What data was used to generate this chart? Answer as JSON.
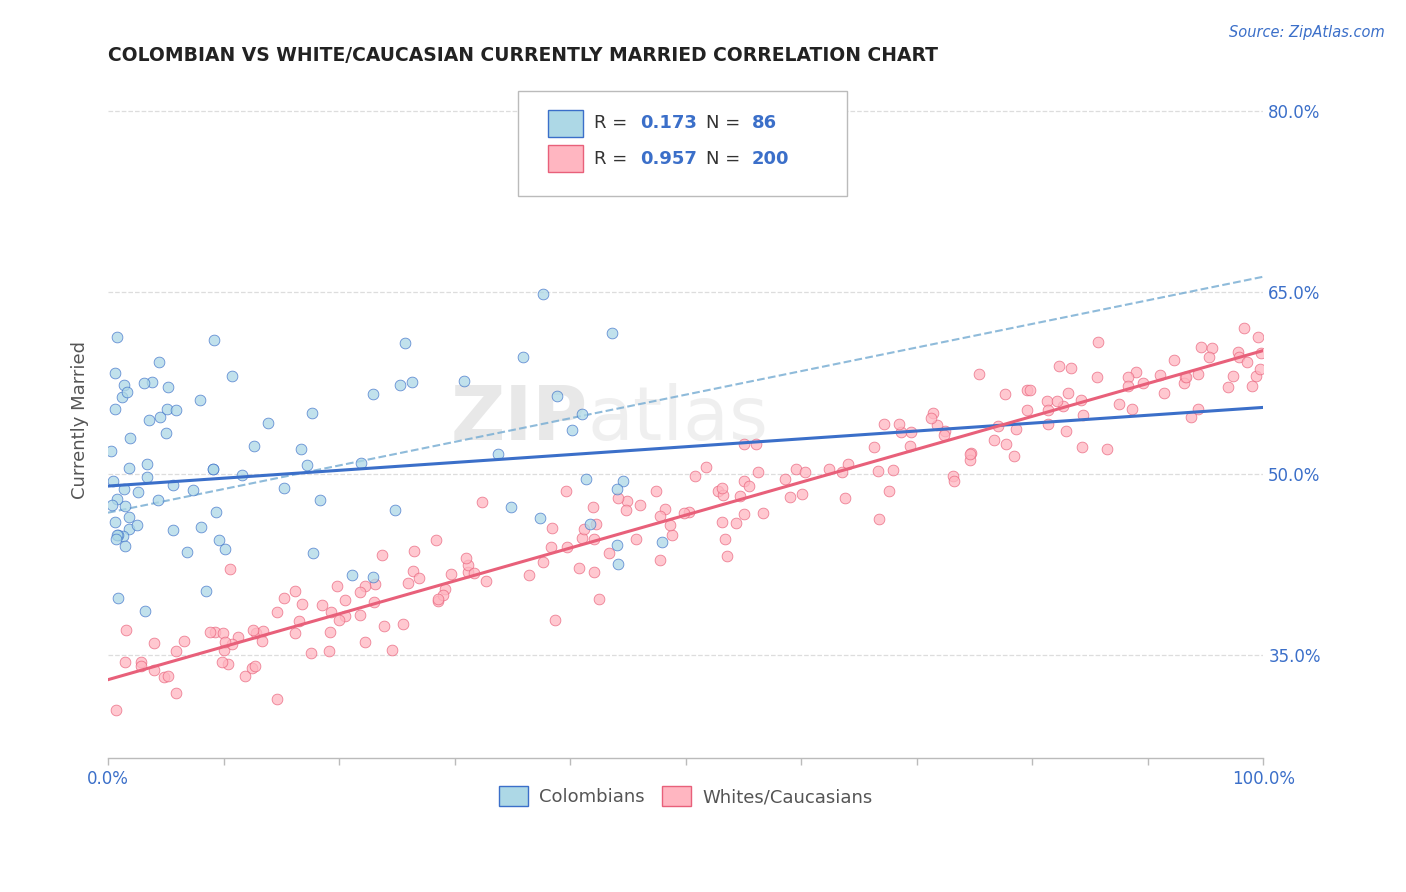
{
  "title": "COLOMBIAN VS WHITE/CAUCASIAN CURRENTLY MARRIED CORRELATION CHART",
  "source_text": "Source: ZipAtlas.com",
  "ylabel": "Currently Married",
  "xlim": [
    0.0,
    1.0
  ],
  "ylim": [
    0.265,
    0.825
  ],
  "x_ticks": [
    0.0,
    0.1,
    0.2,
    0.3,
    0.4,
    0.5,
    0.6,
    0.7,
    0.8,
    0.9,
    1.0
  ],
  "x_tick_labels": [
    "0.0%",
    "",
    "",
    "",
    "",
    "",
    "",
    "",
    "",
    "",
    "100.0%"
  ],
  "y_ticks": [
    0.35,
    0.5,
    0.65,
    0.8
  ],
  "y_tick_labels": [
    "35.0%",
    "50.0%",
    "65.0%",
    "80.0%"
  ],
  "color_blue": "#ADD8E6",
  "color_pink": "#FFB6C1",
  "line_color_blue": "#3B6FC9",
  "line_color_pink": "#E8607A",
  "dashed_line_color": "#7BAFD4",
  "title_color": "#222222",
  "axis_label_color": "#3B6FC9",
  "n_colombian": 86,
  "n_white": 200,
  "r_colombian": 0.173,
  "r_white": 0.957,
  "blue_intercept": 0.49,
  "blue_slope": 0.065,
  "pink_intercept": 0.33,
  "pink_slope": 0.272,
  "dashed_intercept": 0.468,
  "dashed_slope": 0.195,
  "background_color": "#FFFFFF",
  "grid_color": "#DDDDDD",
  "seed": 99
}
